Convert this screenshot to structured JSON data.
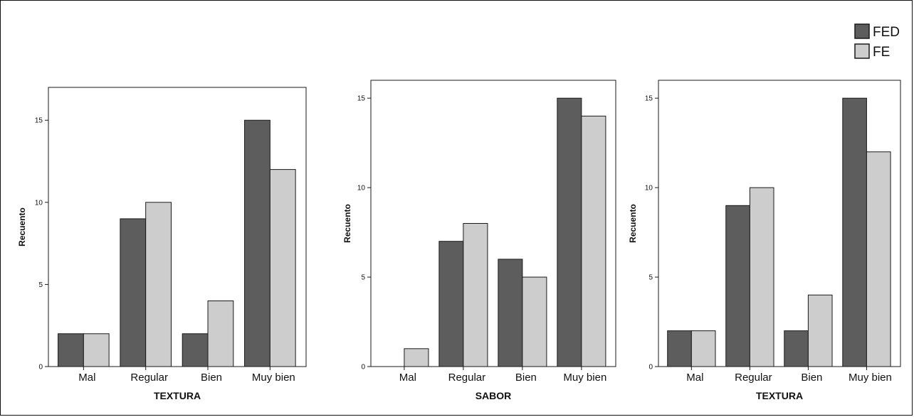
{
  "colors": {
    "FED": "#5d5d5d",
    "FE": "#cdcdcd",
    "outline": "#1a1a1a"
  },
  "legend": {
    "entries": [
      "FED",
      "FE"
    ]
  },
  "chart_data": [
    {
      "type": "bar",
      "xlabel": "TEXTURA",
      "ylabel": "Recuento",
      "categories": [
        "Mal",
        "Regular",
        "Bien",
        "Muy bien"
      ],
      "yticks": [
        0,
        5,
        10,
        15
      ],
      "ylim": [
        0,
        17
      ],
      "series": [
        {
          "name": "FED",
          "values": [
            2,
            9,
            2,
            15
          ]
        },
        {
          "name": "FE",
          "values": [
            2,
            10,
            4,
            12
          ]
        }
      ]
    },
    {
      "type": "bar",
      "xlabel": "SABOR",
      "ylabel": "Recuento",
      "categories": [
        "Mal",
        "Regular",
        "Bien",
        "Muy bien"
      ],
      "yticks": [
        0,
        5,
        10,
        15
      ],
      "ylim": [
        0,
        16
      ],
      "series": [
        {
          "name": "FED",
          "values": [
            0,
            7,
            6,
            15
          ]
        },
        {
          "name": "FE",
          "values": [
            1,
            8,
            5,
            14
          ]
        }
      ]
    },
    {
      "type": "bar",
      "xlabel": "TEXTURA",
      "ylabel": "Recuento",
      "categories": [
        "Mal",
        "Regular",
        "Bien",
        "Muy bien"
      ],
      "yticks": [
        0,
        5,
        10,
        15
      ],
      "ylim": [
        0,
        16
      ],
      "series": [
        {
          "name": "FED",
          "values": [
            2,
            9,
            2,
            15
          ]
        },
        {
          "name": "FE",
          "values": [
            2,
            10,
            4,
            12
          ]
        }
      ]
    }
  ]
}
